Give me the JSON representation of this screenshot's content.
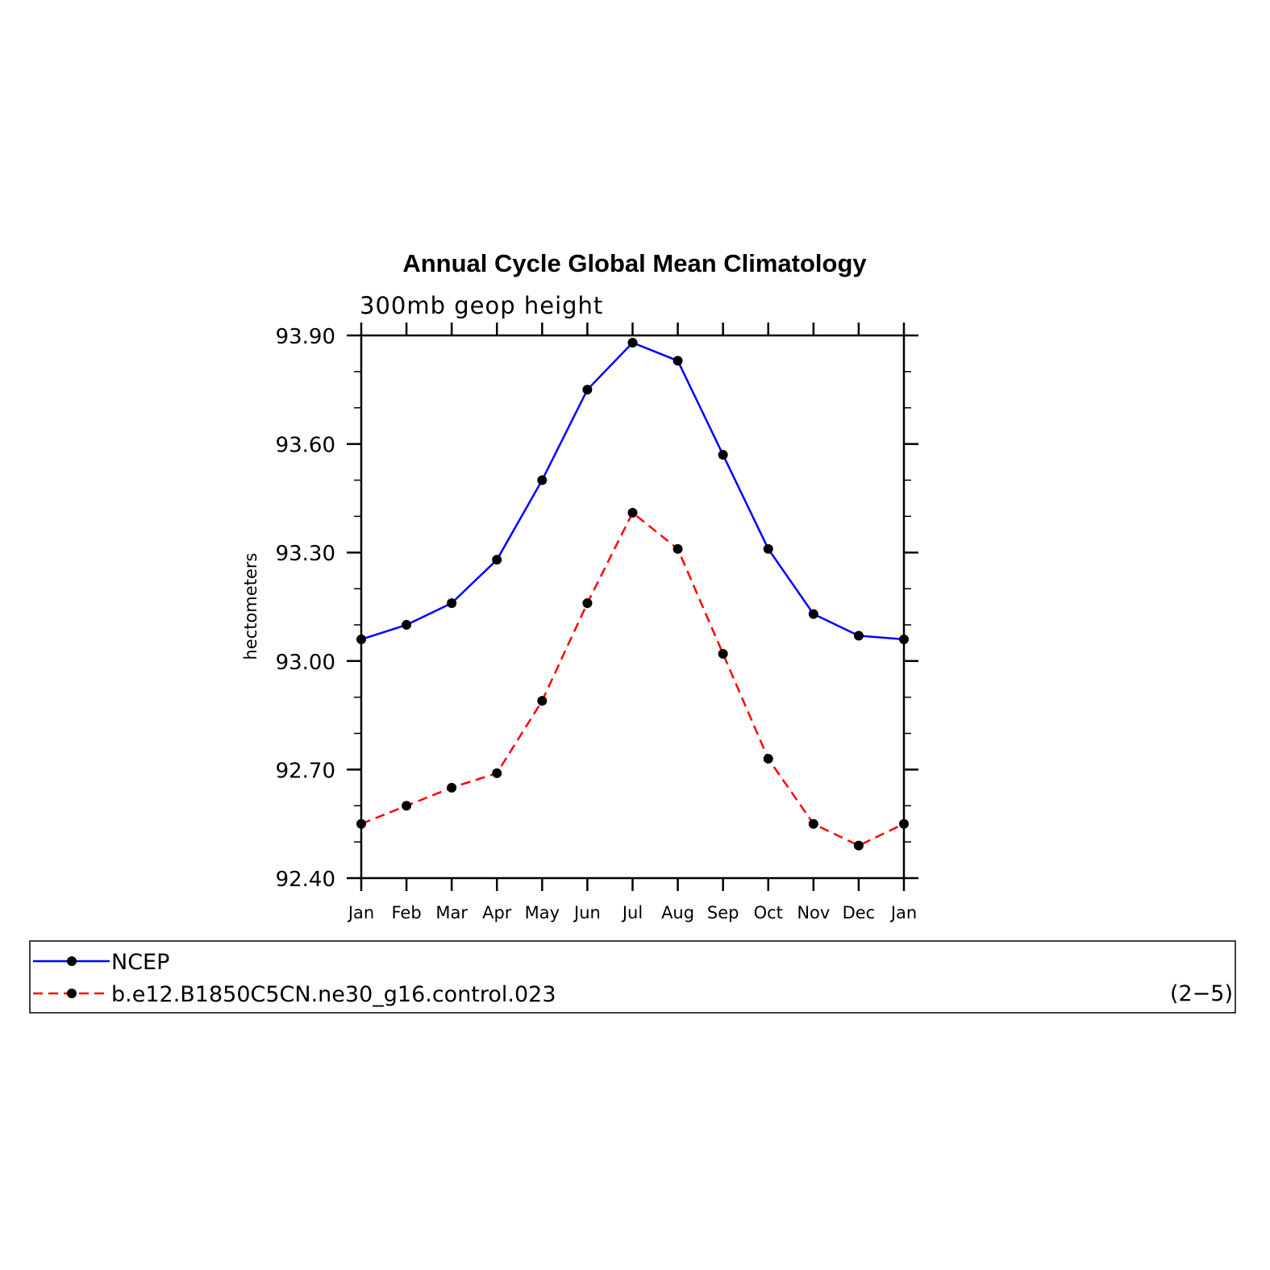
{
  "chart_data": {
    "type": "line",
    "title": "Annual Cycle Global Mean Climatology",
    "subtitle": "300mb  geop  height",
    "xlabel": "",
    "ylabel": "hectometers",
    "categories": [
      "Jan",
      "Feb",
      "Mar",
      "Apr",
      "May",
      "Jun",
      "Jul",
      "Aug",
      "Sep",
      "Oct",
      "Nov",
      "Dec",
      "Jan"
    ],
    "ylim": [
      92.4,
      93.9
    ],
    "yticks": [
      "93.90",
      "93.60",
      "93.30",
      "93.00",
      "92.70",
      "92.40"
    ],
    "ytick_values": [
      93.9,
      93.6,
      93.3,
      93.0,
      92.7,
      92.4
    ],
    "series": [
      {
        "name": "NCEP",
        "color": "#0000ff",
        "dash": "solid",
        "marker": "filled-circle",
        "values": [
          93.06,
          93.1,
          93.16,
          93.28,
          93.5,
          93.75,
          93.88,
          93.83,
          93.57,
          93.31,
          93.13,
          93.07,
          93.06
        ]
      },
      {
        "name": "b.e12.B1850C5CN.ne30_g16.control.023",
        "color": "#ff0000",
        "dash": "dashed",
        "marker": "filled-circle",
        "values": [
          92.55,
          92.6,
          92.65,
          92.69,
          92.89,
          93.16,
          93.41,
          93.31,
          93.02,
          92.73,
          92.55,
          92.49,
          92.55
        ]
      }
    ],
    "legend": {
      "placement": "bottom",
      "note": "(2−5)"
    }
  }
}
